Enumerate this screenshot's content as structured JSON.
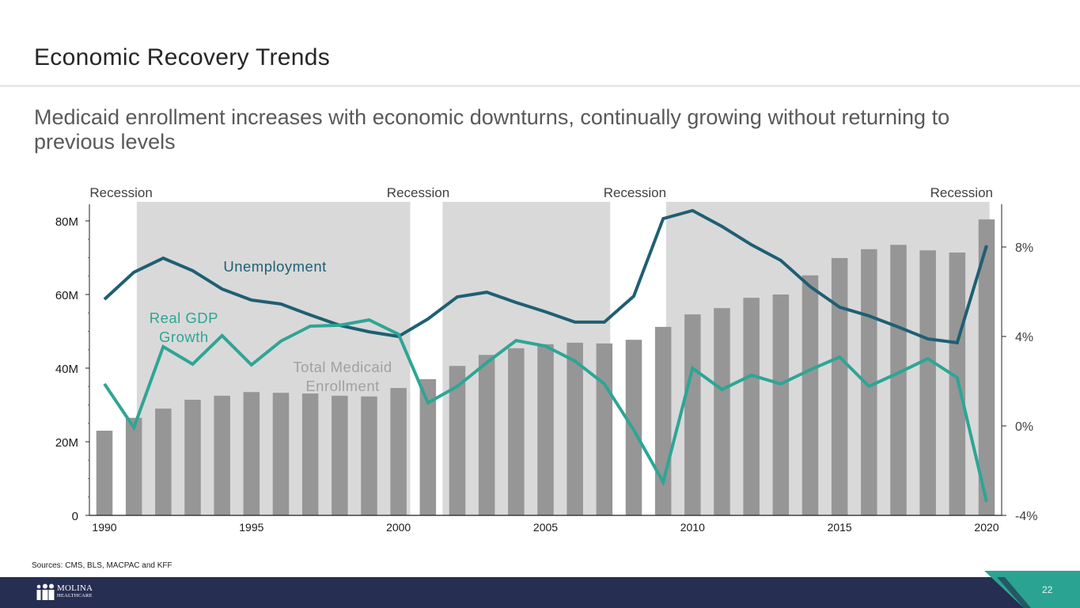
{
  "slide": {
    "title": "Economic Recovery Trends",
    "subtitle": "Medicaid enrollment increases with economic downturns, continually growing without returning to previous levels",
    "sources": "Sources: CMS, BLS, MACPAC and KFF",
    "page_number": "22",
    "logo": {
      "name": "MOLINA",
      "sub": "HEALTHCARE",
      "icon": "people-icon"
    }
  },
  "colors": {
    "bars": "#969696",
    "recession_band": "#d9d9d9",
    "unemployment": "#1f5f73",
    "gdp": "#2ea595",
    "footer_navy": "#262e52",
    "footer_teal": "#2ba393"
  },
  "chart_data": {
    "type": "bar",
    "title": "",
    "x": [
      1990,
      1991,
      1992,
      1993,
      1994,
      1995,
      1996,
      1997,
      1998,
      1999,
      2000,
      2001,
      2002,
      2003,
      2004,
      2005,
      2006,
      2007,
      2008,
      2009,
      2010,
      2011,
      2012,
      2013,
      2014,
      2015,
      2016,
      2017,
      2018,
      2019,
      2020
    ],
    "x_ticks": [
      "1990",
      "1995",
      "2000",
      "2005",
      "2010",
      "2015",
      "2020"
    ],
    "left_axis": {
      "ticks": [
        "0",
        "20M",
        "40M",
        "60M",
        "80M"
      ],
      "range": [
        0,
        80
      ],
      "units": "millions"
    },
    "right_axis": {
      "ticks": [
        "-4%",
        "0%",
        "4%",
        "8%"
      ],
      "range": [
        -4,
        8
      ],
      "units": "percent"
    },
    "series": [
      {
        "name": "Total Medicaid Enrollment",
        "label": "Total Medicaid\nEnrollment",
        "type": "bar",
        "axis": "left",
        "values": [
          23.0,
          26.5,
          29.0,
          31.4,
          32.5,
          33.5,
          33.3,
          33.1,
          32.5,
          32.3,
          34.6,
          37.0,
          40.6,
          43.6,
          45.4,
          46.5,
          46.9,
          46.7,
          47.7,
          51.2,
          54.6,
          56.3,
          59.1,
          60.0,
          65.2,
          69.9,
          72.3,
          73.5,
          72.0,
          71.4,
          80.4
        ]
      },
      {
        "name": "Unemployment",
        "label": "Unemployment",
        "type": "line",
        "axis": "right",
        "values": [
          5.66,
          6.87,
          7.5,
          6.94,
          6.12,
          5.63,
          5.45,
          4.96,
          4.5,
          4.21,
          4.0,
          4.78,
          5.77,
          5.98,
          5.52,
          5.1,
          4.64,
          4.64,
          5.8,
          9.27,
          9.63,
          8.92,
          8.1,
          7.4,
          6.23,
          5.31,
          4.92,
          4.42,
          3.89,
          3.72,
          8.07
        ]
      },
      {
        "name": "Real GDP Growth",
        "label": "Real GDP\nGrowth",
        "type": "line",
        "axis": "right",
        "values": [
          1.88,
          -0.07,
          3.54,
          2.76,
          4.04,
          2.73,
          3.79,
          4.46,
          4.5,
          4.74,
          4.1,
          1.03,
          1.77,
          2.83,
          3.82,
          3.57,
          2.9,
          1.88,
          -0.18,
          -2.51,
          2.58,
          1.63,
          2.27,
          1.88,
          2.51,
          3.08,
          1.77,
          2.37,
          3.01,
          2.16,
          -3.4
        ]
      }
    ],
    "recession_bands": [
      {
        "start": 1991.1,
        "end": 2000.4
      },
      {
        "start": 2001.5,
        "end": 2007.2
      },
      {
        "start": 2009.1,
        "end": 2020.1
      }
    ],
    "recession_labels": [
      {
        "text": "Recession",
        "x": 1989.5
      },
      {
        "text": "Recession",
        "x": 1999.6
      },
      {
        "text": "Recession",
        "x": 2006.97
      },
      {
        "text": "Recession",
        "x": 2018.08
      }
    ],
    "annotations": [
      {
        "series": "Unemployment",
        "text": "Unemployment",
        "x": 1995.8,
        "y_pct": 6.9
      },
      {
        "series": "Real GDP Growth",
        "text": "Real GDP\nGrowth",
        "x": 1992.7,
        "y_pct": 4.6
      },
      {
        "series": "Total Medicaid Enrollment",
        "text": "Total Medicaid\nEnrollment",
        "x": 1998.1,
        "y_pct": 2.4
      }
    ],
    "grid": false,
    "legend": "none (inline labels)"
  }
}
